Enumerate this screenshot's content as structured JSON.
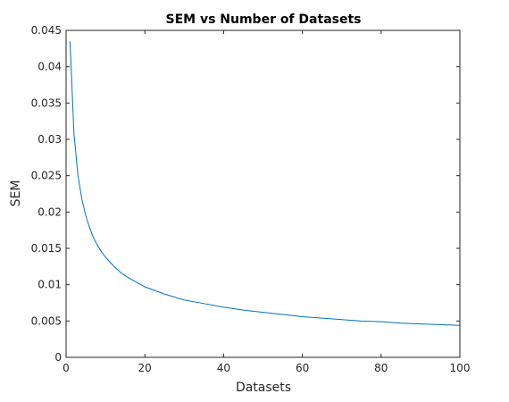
{
  "chart_data": {
    "type": "line",
    "title": "SEM vs Number of Datasets",
    "xlabel": "Datasets",
    "ylabel": "SEM",
    "xlim": [
      0,
      100
    ],
    "ylim": [
      0,
      0.045
    ],
    "x_ticks": [
      "0",
      "20",
      "40",
      "60",
      "80",
      "100"
    ],
    "y_ticks": [
      "0",
      "0.005",
      "0.01",
      "0.015",
      "0.02",
      "0.025",
      "0.03",
      "0.035",
      "0.04",
      "0.045"
    ],
    "grid": false,
    "line_color": "#0072BD",
    "series": [
      {
        "x": [
          1,
          2,
          3,
          4,
          5,
          6,
          7,
          8,
          9,
          10,
          12,
          14,
          16,
          18,
          20,
          25,
          30,
          35,
          40,
          45,
          50,
          55,
          60,
          65,
          70,
          75,
          80,
          85,
          90,
          95,
          100
        ],
        "values": [
          0.0435,
          0.0308,
          0.0251,
          0.0218,
          0.0195,
          0.0178,
          0.0164,
          0.0154,
          0.0145,
          0.0138,
          0.0126,
          0.0116,
          0.0109,
          0.0103,
          0.0097,
          0.0087,
          0.0079,
          0.0074,
          0.0069,
          0.0065,
          0.0062,
          0.0059,
          0.0056,
          0.0054,
          0.0052,
          0.005,
          0.0049,
          0.0047,
          0.0046,
          0.0045,
          0.0044
        ]
      }
    ]
  }
}
